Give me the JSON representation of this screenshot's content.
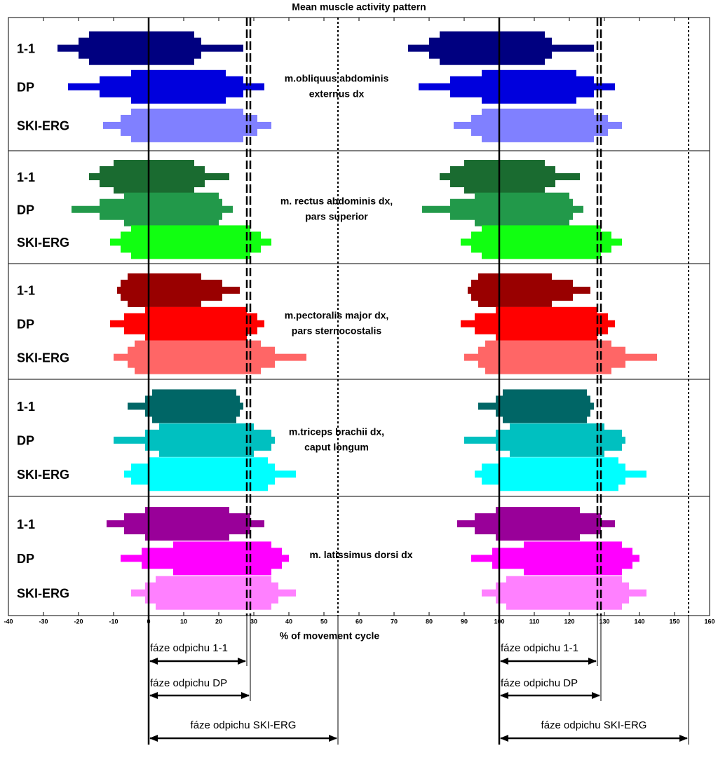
{
  "chart_data": {
    "type": "activity",
    "title": "Mean muscle activity pattern",
    "x_label": "% of movement cycle",
    "xlim": [
      -40,
      160
    ],
    "xticks": [
      -40,
      -30,
      -20,
      -10,
      0,
      10,
      20,
      30,
      40,
      50,
      60,
      70,
      80,
      90,
      100,
      110,
      120,
      130,
      140,
      150,
      160
    ],
    "cycle_starts": [
      0,
      100
    ],
    "muscles": [
      {
        "label_lines": [
          "m.obliquus abdominis",
          "externus dx"
        ],
        "rows": [
          {
            "name": "1-1",
            "color": "#000080",
            "thin": [
              [
                -26,
                27
              ],
              [
                74,
                127
              ]
            ],
            "medium": [
              [
                -20,
                15
              ],
              [
                80,
                115
              ]
            ],
            "thick": [
              [
                -17,
                13
              ],
              [
                83,
                113
              ]
            ]
          },
          {
            "name": "DP",
            "color": "#0000dd",
            "thin": [
              [
                -23,
                33
              ],
              [
                77,
                133
              ]
            ],
            "medium": [
              [
                -14,
                27
              ],
              [
                86,
                127
              ]
            ],
            "thick": [
              [
                -5,
                22
              ],
              [
                95,
                122
              ]
            ]
          },
          {
            "name": "SKI-ERG",
            "color": "#8080ff",
            "thin": [
              [
                -13,
                35
              ],
              [
                87,
                135
              ]
            ],
            "medium": [
              [
                -8,
                31
              ],
              [
                92,
                131
              ]
            ],
            "thick": [
              [
                -5,
                27
              ],
              [
                95,
                127
              ]
            ]
          }
        ]
      },
      {
        "label_lines": [
          "m. rectus abdominis dx,",
          "pars superior"
        ],
        "rows": [
          {
            "name": "1-1",
            "color": "#1a6b30",
            "thin": [
              [
                -17,
                23
              ],
              [
                83,
                123
              ]
            ],
            "medium": [
              [
                -14,
                16
              ],
              [
                86,
                116
              ]
            ],
            "thick": [
              [
                -10,
                13
              ],
              [
                90,
                113
              ]
            ]
          },
          {
            "name": "DP",
            "color": "#22994a",
            "thin": [
              [
                -22,
                24
              ],
              [
                78,
                124
              ]
            ],
            "medium": [
              [
                -14,
                21
              ],
              [
                86,
                121
              ]
            ],
            "thick": [
              [
                -7,
                20
              ],
              [
                93,
                120
              ]
            ]
          },
          {
            "name": "SKI-ERG",
            "color": "#11ff11",
            "thin": [
              [
                -11,
                35
              ],
              [
                89,
                135
              ]
            ],
            "medium": [
              [
                -8,
                32
              ],
              [
                92,
                132
              ]
            ],
            "thick": [
              [
                -5,
                29
              ],
              [
                95,
                129
              ]
            ]
          }
        ]
      },
      {
        "label_lines": [
          "m.pectoralis major dx,",
          "pars sternocostalis"
        ],
        "rows": [
          {
            "name": "1-1",
            "color": "#990000",
            "thin": [
              [
                -9,
                26
              ],
              [
                91,
                126
              ]
            ],
            "medium": [
              [
                -8,
                21
              ],
              [
                92,
                121
              ]
            ],
            "thick": [
              [
                -6,
                15
              ],
              [
                94,
                115
              ]
            ]
          },
          {
            "name": "DP",
            "color": "#ff0000",
            "thin": [
              [
                -11,
                33
              ],
              [
                89,
                133
              ]
            ],
            "medium": [
              [
                -7,
                31
              ],
              [
                93,
                131
              ]
            ],
            "thick": [
              [
                -1,
                28
              ],
              [
                99,
                128
              ]
            ]
          },
          {
            "name": "SKI-ERG",
            "color": "#ff6666",
            "thin": [
              [
                -10,
                45
              ],
              [
                90,
                145
              ]
            ],
            "medium": [
              [
                -6,
                36
              ],
              [
                94,
                136
              ]
            ],
            "thick": [
              [
                -4,
                32
              ],
              [
                96,
                132
              ]
            ]
          }
        ]
      },
      {
        "label_lines": [
          "m.triceps brachii dx,",
          "caput longum"
        ],
        "rows": [
          {
            "name": "1-1",
            "color": "#006666",
            "thin": [
              [
                -6,
                27
              ],
              [
                94,
                127
              ]
            ],
            "medium": [
              [
                -1,
                26
              ],
              [
                99,
                126
              ]
            ],
            "thick": [
              [
                1,
                25
              ],
              [
                101,
                125
              ]
            ]
          },
          {
            "name": "DP",
            "color": "#00c0c0",
            "thin": [
              [
                -10,
                36
              ],
              [
                90,
                136
              ]
            ],
            "medium": [
              [
                -1,
                35
              ],
              [
                99,
                135
              ]
            ],
            "thick": [
              [
                3,
                30
              ],
              [
                103,
                130
              ]
            ]
          },
          {
            "name": "SKI-ERG",
            "color": "#00ffff",
            "thin": [
              [
                -7,
                42
              ],
              [
                93,
                142
              ]
            ],
            "medium": [
              [
                -5,
                36
              ],
              [
                95,
                136
              ]
            ],
            "thick": [
              [
                0,
                34
              ],
              [
                100,
                134
              ]
            ]
          }
        ]
      },
      {
        "label_lines": [
          "m. latissimus dorsi dx"
        ],
        "rows": [
          {
            "name": "1-1",
            "color": "#990099",
            "thin": [
              [
                -12,
                33
              ],
              [
                88,
                133
              ]
            ],
            "medium": [
              [
                -7,
                29
              ],
              [
                93,
                129
              ]
            ],
            "thick": [
              [
                -1,
                23
              ],
              [
                99,
                123
              ]
            ]
          },
          {
            "name": "DP",
            "color": "#ff00ff",
            "thin": [
              [
                -8,
                40
              ],
              [
                92,
                140
              ]
            ],
            "medium": [
              [
                -2,
                38
              ],
              [
                98,
                138
              ]
            ],
            "thick": [
              [
                7,
                35
              ],
              [
                107,
                135
              ]
            ]
          },
          {
            "name": "SKI-ERG",
            "color": "#ff80ff",
            "thin": [
              [
                -5,
                42
              ],
              [
                95,
                142
              ]
            ],
            "medium": [
              [
                -1,
                37
              ],
              [
                99,
                137
              ]
            ],
            "thick": [
              [
                2,
                35
              ],
              [
                102,
                135
              ]
            ]
          }
        ]
      }
    ],
    "phases": [
      {
        "label": "fáze odpichu 1-1",
        "line": "dashed",
        "intervals": [
          [
            0,
            28
          ],
          [
            100,
            128
          ]
        ]
      },
      {
        "label": "fáze odpichu  DP",
        "line": "dashed",
        "intervals": [
          [
            0,
            29
          ],
          [
            100,
            129
          ]
        ]
      },
      {
        "label": "fáze odpichu SKI-ERG",
        "line": "dotted",
        "intervals": [
          [
            0,
            54
          ],
          [
            100,
            154
          ]
        ]
      }
    ]
  }
}
